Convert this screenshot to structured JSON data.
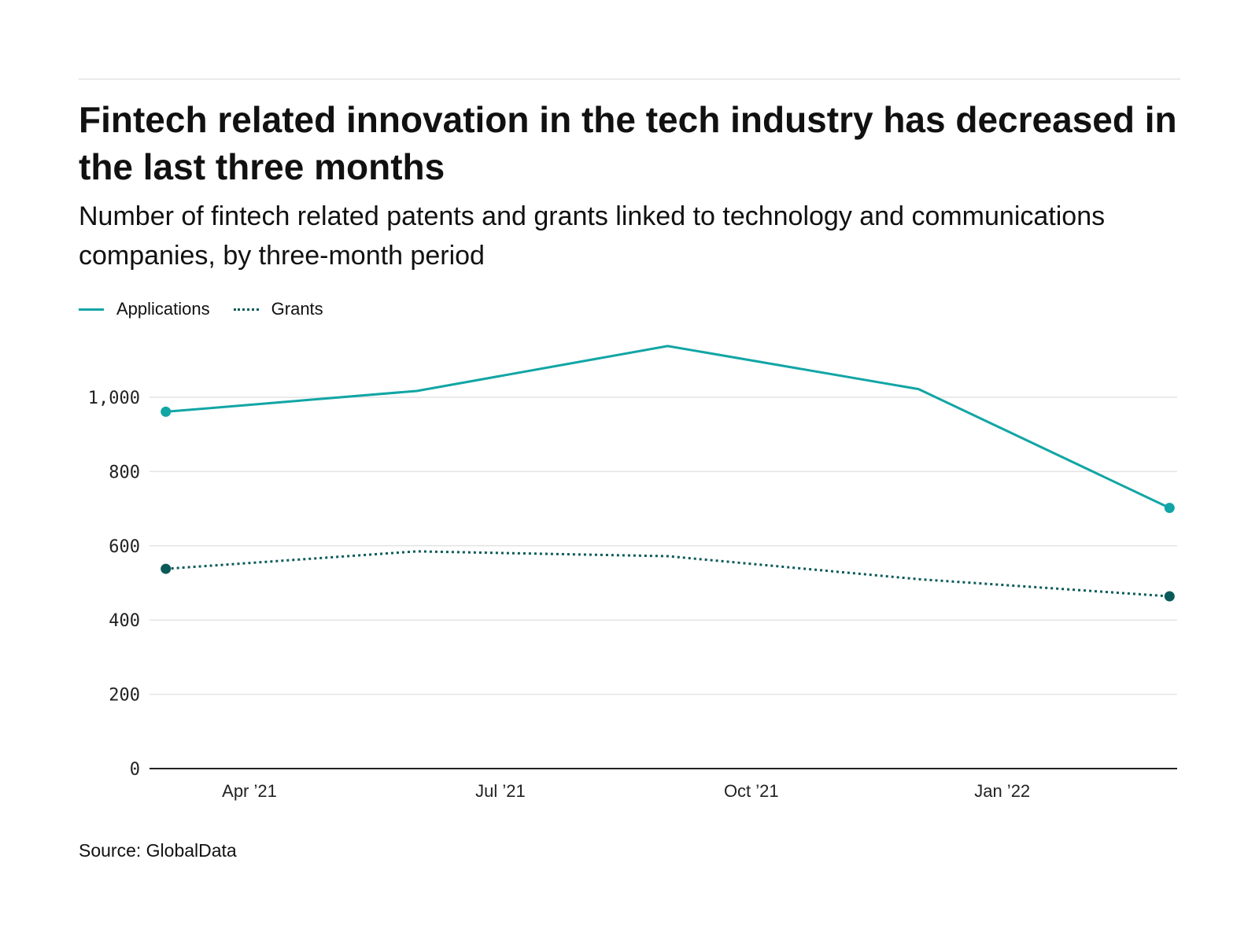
{
  "title": "Fintech related innovation in the tech industry has decreased in the last three months",
  "subtitle": "Number of fintech related patents and grants linked to technology and communications companies, by three-month period",
  "source": "Source: GlobalData",
  "colors": {
    "applications": "#12a5a5",
    "grants": "#0b5a5a",
    "grid": "#e4e4e4",
    "axis": "#222222"
  },
  "chart_data": {
    "type": "line",
    "title": "Fintech related innovation in the tech industry has decreased in the last three months",
    "xlabel": "",
    "ylabel": "",
    "x": [
      "2021-03",
      "2021-06",
      "2021-09",
      "2021-12",
      "2022-03"
    ],
    "x_month_index": [
      2,
      5,
      8,
      11,
      14
    ],
    "xticks": [
      {
        "label": "Apr ’21",
        "month_index": 3
      },
      {
        "label": "Jul ’21",
        "month_index": 6
      },
      {
        "label": "Oct ’21",
        "month_index": 9
      },
      {
        "label": "Jan ’22",
        "month_index": 12
      }
    ],
    "yticks": [
      {
        "label": "0",
        "value": 0
      },
      {
        "label": "200",
        "value": 200
      },
      {
        "label": "400",
        "value": 400
      },
      {
        "label": "600",
        "value": 600
      },
      {
        "label": "800",
        "value": 800
      },
      {
        "label": "1,000",
        "value": 1000
      }
    ],
    "ylim": [
      0,
      1180
    ],
    "grid": true,
    "legend_position": "top-left",
    "series": [
      {
        "name": "Applications",
        "style": "solid",
        "values": [
          961,
          1017,
          1138,
          1022,
          702
        ]
      },
      {
        "name": "Grants",
        "style": "dotted",
        "values": [
          538,
          585,
          572,
          510,
          464
        ]
      }
    ]
  }
}
